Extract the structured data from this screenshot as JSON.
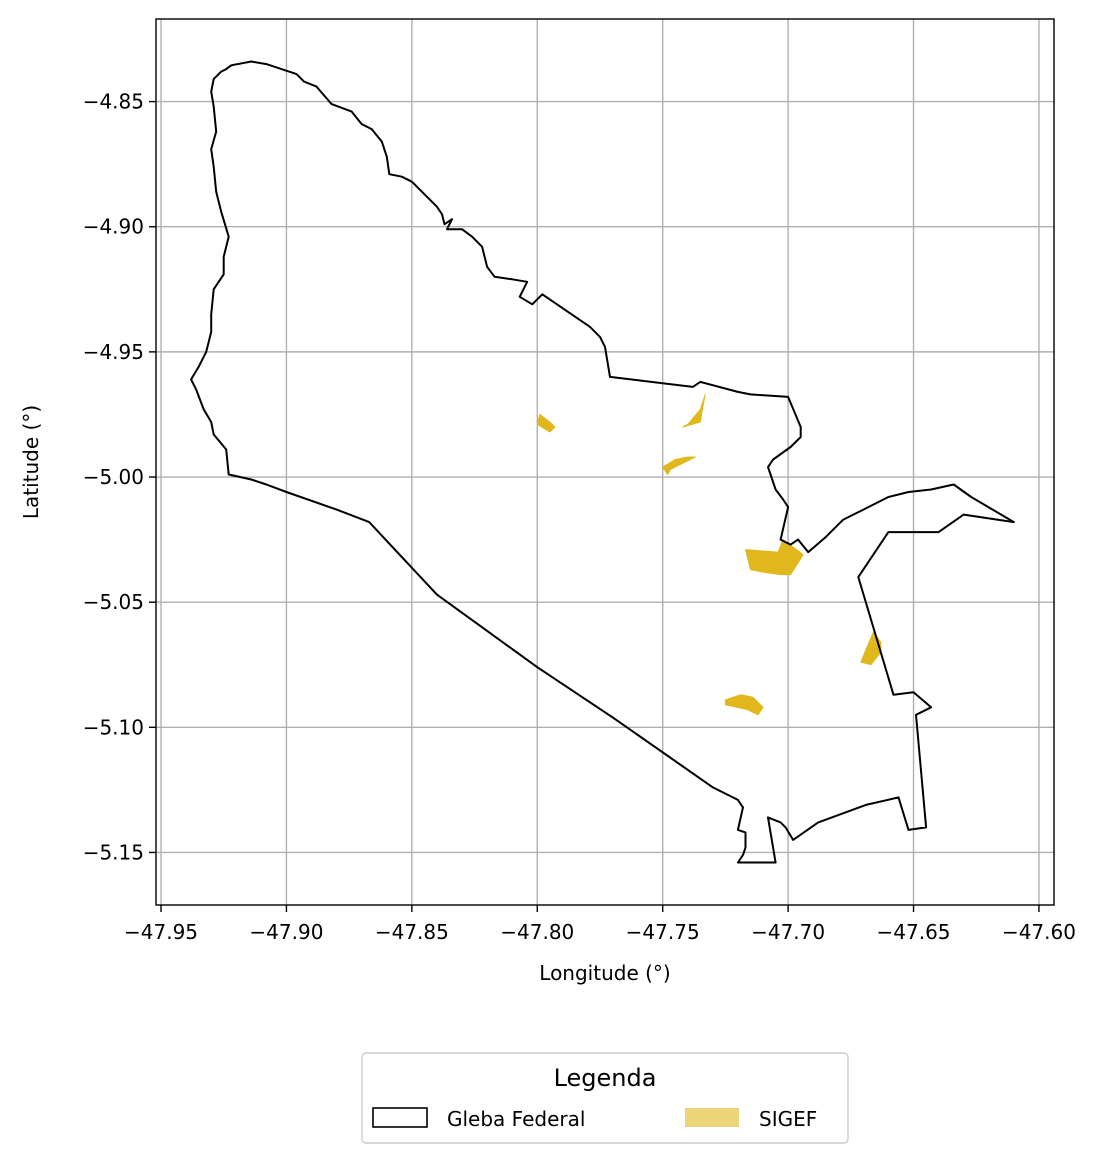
{
  "chart_data": {
    "type": "map",
    "xlabel": "Longitude (°)",
    "ylabel": "Latitude (°)",
    "xlim": [
      -47.952,
      -47.594
    ],
    "ylim": [
      -5.171,
      -4.817
    ],
    "x_ticks": [
      -47.95,
      -47.9,
      -47.85,
      -47.8,
      -47.75,
      -47.7,
      -47.65,
      -47.6
    ],
    "x_tick_labels": [
      "−47.95",
      "−47.90",
      "−47.85",
      "−47.80",
      "−47.75",
      "−47.70",
      "−47.65",
      "−47.60"
    ],
    "y_ticks": [
      -4.85,
      -4.9,
      -4.95,
      -5.0,
      -5.05,
      -5.1,
      -5.15
    ],
    "y_tick_labels": [
      "−4.85",
      "−4.90",
      "−4.95",
      "−5.00",
      "−5.05",
      "−5.10",
      "−5.15"
    ],
    "grid": true,
    "legend": {
      "title": "Legenda",
      "placement": "bottom-center",
      "entries": [
        {
          "label": "Gleba Federal",
          "style": "outline",
          "color": "#000000"
        },
        {
          "label": "SIGEF",
          "style": "fill",
          "color": "#e0b81e"
        }
      ]
    },
    "series": [
      {
        "name": "Gleba Federal",
        "kind": "outline",
        "color": "#000000",
        "points": [
          [
            -47.922,
            -4.8355
          ],
          [
            -47.914,
            -4.834
          ],
          [
            -47.908,
            -4.835
          ],
          [
            -47.896,
            -4.839
          ],
          [
            -47.893,
            -4.842
          ],
          [
            -47.888,
            -4.844
          ],
          [
            -47.882,
            -4.851
          ],
          [
            -47.874,
            -4.854
          ],
          [
            -47.87,
            -4.859
          ],
          [
            -47.866,
            -4.861
          ],
          [
            -47.862,
            -4.866
          ],
          [
            -47.86,
            -4.872
          ],
          [
            -47.859,
            -4.879
          ],
          [
            -47.854,
            -4.88
          ],
          [
            -47.85,
            -4.882
          ],
          [
            -47.845,
            -4.887
          ],
          [
            -47.84,
            -4.892
          ],
          [
            -47.838,
            -4.895
          ],
          [
            -47.837,
            -4.899
          ],
          [
            -47.834,
            -4.897
          ],
          [
            -47.836,
            -4.901
          ],
          [
            -47.83,
            -4.901
          ],
          [
            -47.826,
            -4.904
          ],
          [
            -47.822,
            -4.908
          ],
          [
            -47.82,
            -4.916
          ],
          [
            -47.817,
            -4.92
          ],
          [
            -47.81,
            -4.921
          ],
          [
            -47.804,
            -4.922
          ],
          [
            -47.807,
            -4.928
          ],
          [
            -47.802,
            -4.931
          ],
          [
            -47.798,
            -4.927
          ],
          [
            -47.779,
            -4.94
          ],
          [
            -47.775,
            -4.944
          ],
          [
            -47.773,
            -4.948
          ],
          [
            -47.771,
            -4.96
          ],
          [
            -47.738,
            -4.964
          ],
          [
            -47.735,
            -4.962
          ],
          [
            -47.72,
            -4.966
          ],
          [
            -47.715,
            -4.967
          ],
          [
            -47.7,
            -4.968
          ],
          [
            -47.695,
            -4.98
          ],
          [
            -47.695,
            -4.984
          ],
          [
            -47.699,
            -4.988
          ],
          [
            -47.706,
            -4.993
          ],
          [
            -47.708,
            -4.996
          ],
          [
            -47.705,
            -5.005
          ],
          [
            -47.702,
            -5.009
          ],
          [
            -47.7,
            -5.012
          ],
          [
            -47.703,
            -5.025
          ],
          [
            -47.699,
            -5.027
          ],
          [
            -47.696,
            -5.025
          ],
          [
            -47.692,
            -5.03
          ],
          [
            -47.685,
            -5.024
          ],
          [
            -47.678,
            -5.017
          ],
          [
            -47.67,
            -5.013
          ],
          [
            -47.66,
            -5.008
          ],
          [
            -47.652,
            -5.006
          ],
          [
            -47.643,
            -5.005
          ],
          [
            -47.634,
            -5.003
          ],
          [
            -47.627,
            -5.008
          ],
          [
            -47.61,
            -5.018
          ],
          [
            -47.63,
            -5.015
          ],
          [
            -47.64,
            -5.022
          ],
          [
            -47.66,
            -5.022
          ],
          [
            -47.672,
            -5.04
          ],
          [
            -47.658,
            -5.087
          ],
          [
            -47.65,
            -5.086
          ],
          [
            -47.643,
            -5.092
          ],
          [
            -47.649,
            -5.095
          ],
          [
            -47.645,
            -5.14
          ],
          [
            -47.652,
            -5.141
          ],
          [
            -47.656,
            -5.128
          ],
          [
            -47.669,
            -5.131
          ],
          [
            -47.688,
            -5.138
          ],
          [
            -47.698,
            -5.145
          ],
          [
            -47.701,
            -5.14
          ],
          [
            -47.703,
            -5.138
          ],
          [
            -47.708,
            -5.136
          ],
          [
            -47.705,
            -5.154
          ],
          [
            -47.72,
            -5.154
          ],
          [
            -47.718,
            -5.151
          ],
          [
            -47.717,
            -5.148
          ],
          [
            -47.717,
            -5.142
          ],
          [
            -47.72,
            -5.141
          ],
          [
            -47.718,
            -5.132
          ],
          [
            -47.72,
            -5.129
          ],
          [
            -47.73,
            -5.124
          ],
          [
            -47.77,
            -5.096
          ],
          [
            -47.8,
            -5.076
          ],
          [
            -47.84,
            -5.047
          ],
          [
            -47.867,
            -5.018
          ],
          [
            -47.88,
            -5.013
          ],
          [
            -47.9,
            -5.006
          ],
          [
            -47.908,
            -5.003
          ],
          [
            -47.914,
            -5.001
          ],
          [
            -47.923,
            -4.999
          ],
          [
            -47.924,
            -4.989
          ],
          [
            -47.929,
            -4.983
          ],
          [
            -47.93,
            -4.978
          ],
          [
            -47.933,
            -4.973
          ],
          [
            -47.936,
            -4.965
          ],
          [
            -47.938,
            -4.961
          ],
          [
            -47.935,
            -4.956
          ],
          [
            -47.932,
            -4.95
          ],
          [
            -47.93,
            -4.942
          ],
          [
            -47.93,
            -4.935
          ],
          [
            -47.929,
            -4.925
          ],
          [
            -47.925,
            -4.919
          ],
          [
            -47.925,
            -4.912
          ],
          [
            -47.924,
            -4.908
          ],
          [
            -47.923,
            -4.904
          ],
          [
            -47.926,
            -4.894
          ],
          [
            -47.928,
            -4.886
          ],
          [
            -47.929,
            -4.876
          ],
          [
            -47.93,
            -4.869
          ],
          [
            -47.928,
            -4.862
          ],
          [
            -47.929,
            -4.852
          ],
          [
            -47.93,
            -4.846
          ],
          [
            -47.929,
            -4.841
          ],
          [
            -47.926,
            -4.838
          ],
          [
            -47.924,
            -4.837
          ],
          [
            -47.922,
            -4.8355
          ]
        ]
      },
      {
        "name": "SIGEF",
        "kind": "fill",
        "color": "#e0b81e",
        "polygons": [
          [
            [
              -47.799,
              -4.975
            ],
            [
              -47.795,
              -4.978
            ],
            [
              -47.793,
              -4.98
            ],
            [
              -47.795,
              -4.982
            ],
            [
              -47.8,
              -4.979
            ]
          ],
          [
            [
              -47.733,
              -4.967
            ],
            [
              -47.735,
              -4.973
            ],
            [
              -47.74,
              -4.979
            ],
            [
              -47.742,
              -4.98
            ],
            [
              -47.735,
              -4.978
            ],
            [
              -47.734,
              -4.972
            ]
          ],
          [
            [
              -47.75,
              -4.996
            ],
            [
              -47.745,
              -4.993
            ],
            [
              -47.74,
              -4.992
            ],
            [
              -47.737,
              -4.992
            ],
            [
              -47.741,
              -4.994
            ],
            [
              -47.747,
              -4.997
            ],
            [
              -47.748,
              -4.999
            ]
          ],
          [
            [
              -47.717,
              -5.029
            ],
            [
              -47.704,
              -5.03
            ],
            [
              -47.702,
              -5.025
            ],
            [
              -47.694,
              -5.031
            ],
            [
              -47.699,
              -5.039
            ],
            [
              -47.703,
              -5.039
            ],
            [
              -47.71,
              -5.038
            ],
            [
              -47.715,
              -5.037
            ]
          ],
          [
            [
              -47.666,
              -5.062
            ],
            [
              -47.663,
              -5.066
            ],
            [
              -47.663,
              -5.07
            ],
            [
              -47.667,
              -5.075
            ],
            [
              -47.671,
              -5.074
            ],
            [
              -47.669,
              -5.069
            ]
          ],
          [
            [
              -47.725,
              -5.089
            ],
            [
              -47.719,
              -5.087
            ],
            [
              -47.714,
              -5.088
            ],
            [
              -47.71,
              -5.092
            ],
            [
              -47.712,
              -5.095
            ],
            [
              -47.716,
              -5.093
            ],
            [
              -47.725,
              -5.091
            ]
          ]
        ]
      }
    ]
  }
}
